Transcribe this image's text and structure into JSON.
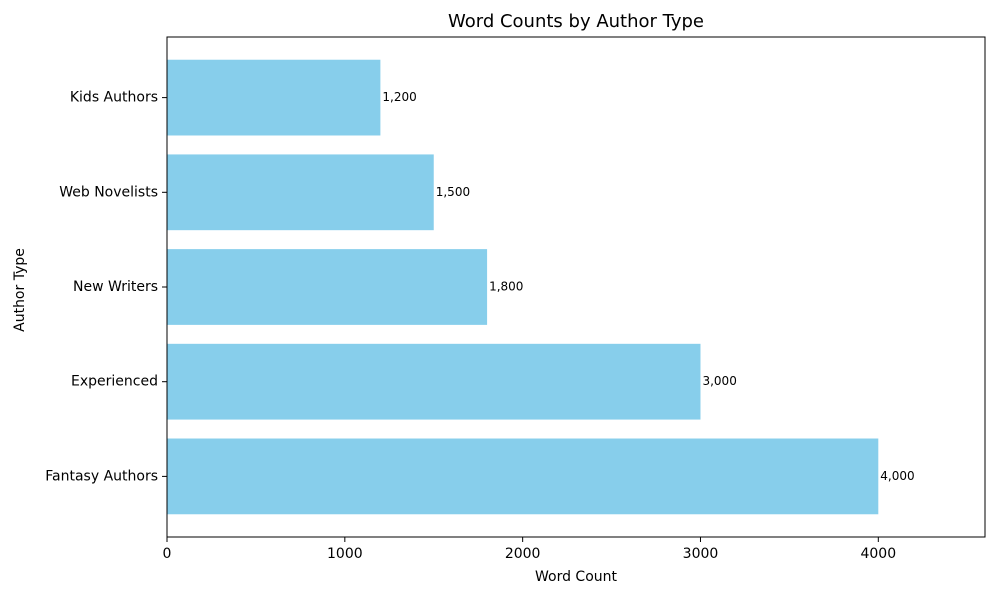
{
  "chart_data": {
    "type": "barh",
    "title": "Word Counts by Author Type",
    "x_label": "Word Count",
    "y_label": "Author Type",
    "categories": [
      "Kids Authors",
      "Web Novelists",
      "New Writers",
      "Experienced",
      "Fantasy Authors"
    ],
    "values": [
      1200,
      1500,
      1800,
      3000,
      4000
    ],
    "value_labels": [
      "1,200",
      "1,500",
      "1,800",
      "3,000",
      "4,000"
    ],
    "color": "#87ceeb",
    "xlim": [
      0,
      4600
    ],
    "xticks": [
      0,
      1000,
      2000,
      3000,
      4000
    ],
    "grid": false
  }
}
